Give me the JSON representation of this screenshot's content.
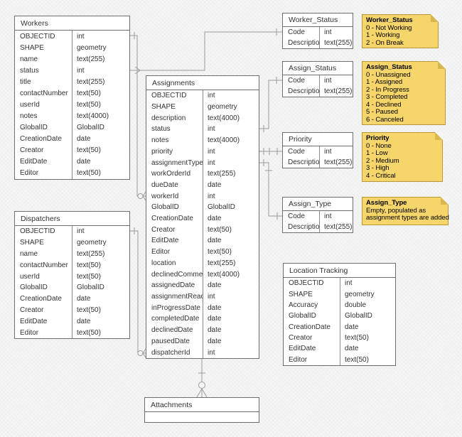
{
  "diagram": {
    "tables": {
      "workers": {
        "title": "Workers",
        "fields": [
          {
            "name": "OBJECTID",
            "type": "int"
          },
          {
            "name": "SHAPE",
            "type": "geometry"
          },
          {
            "name": "name",
            "type": "text(255)"
          },
          {
            "name": "status",
            "type": "int"
          },
          {
            "name": "title",
            "type": "text(255)"
          },
          {
            "name": "contactNumber",
            "type": "text(50)"
          },
          {
            "name": "userId",
            "type": "text(50)"
          },
          {
            "name": "notes",
            "type": "text(4000)"
          },
          {
            "name": "GlobalID",
            "type": "GlobalID"
          },
          {
            "name": "CreationDate",
            "type": "date"
          },
          {
            "name": "Creator",
            "type": "text(50)"
          },
          {
            "name": "EditDate",
            "type": "date"
          },
          {
            "name": "Editor",
            "type": "text(50)"
          }
        ]
      },
      "dispatchers": {
        "title": "Dispatchers",
        "fields": [
          {
            "name": "OBJECTID",
            "type": "int"
          },
          {
            "name": "SHAPE",
            "type": "geometry"
          },
          {
            "name": "name",
            "type": "text(255)"
          },
          {
            "name": "contactNumber",
            "type": "text(50)"
          },
          {
            "name": "userId",
            "type": "text(50)"
          },
          {
            "name": "GlobalID",
            "type": "GlobalID"
          },
          {
            "name": "CreationDate",
            "type": "date"
          },
          {
            "name": "Creator",
            "type": "text(50)"
          },
          {
            "name": "EditDate",
            "type": "date"
          },
          {
            "name": "Editor",
            "type": "text(50)"
          }
        ]
      },
      "assignments": {
        "title": "Assignments",
        "fields": [
          {
            "name": "OBJECTID",
            "type": "int"
          },
          {
            "name": "SHAPE",
            "type": "geometry"
          },
          {
            "name": "description",
            "type": "text(4000)"
          },
          {
            "name": "status",
            "type": "int"
          },
          {
            "name": "notes",
            "type": "text(4000)"
          },
          {
            "name": "priority",
            "type": "int"
          },
          {
            "name": "assignmentType",
            "type": "int"
          },
          {
            "name": "workOrderId",
            "type": "text(255)"
          },
          {
            "name": "dueDate",
            "type": "date"
          },
          {
            "name": "workerId",
            "type": "int"
          },
          {
            "name": "GlobalID",
            "type": "GlobalID"
          },
          {
            "name": "CreationDate",
            "type": "date"
          },
          {
            "name": "Creator",
            "type": "text(50)"
          },
          {
            "name": "EditDate",
            "type": "date"
          },
          {
            "name": "Editor",
            "type": "text(50)"
          },
          {
            "name": "location",
            "type": "text(255)"
          },
          {
            "name": "declinedComment",
            "type": "text(4000)"
          },
          {
            "name": "assignedDate",
            "type": "date"
          },
          {
            "name": "assignmentRead",
            "type": "int"
          },
          {
            "name": "inProgressDate",
            "type": "date"
          },
          {
            "name": "completedDate",
            "type": "date"
          },
          {
            "name": "declinedDate",
            "type": "date"
          },
          {
            "name": "pausedDate",
            "type": "date"
          },
          {
            "name": "dispatcherId",
            "type": "int"
          }
        ]
      },
      "attachments": {
        "title": "Attachments",
        "fields": []
      },
      "worker_status": {
        "title": "Worker_Status",
        "fields": [
          {
            "name": "Code",
            "type": "int"
          },
          {
            "name": "Description",
            "type": "text(255)"
          }
        ]
      },
      "assign_status": {
        "title": "Assign_Status",
        "fields": [
          {
            "name": "Code",
            "type": "int"
          },
          {
            "name": "Description",
            "type": "text(255)"
          }
        ]
      },
      "priority": {
        "title": "Priority",
        "fields": [
          {
            "name": "Code",
            "type": "int"
          },
          {
            "name": "Description",
            "type": "text(255)"
          }
        ]
      },
      "assign_type": {
        "title": "Assign_Type",
        "fields": [
          {
            "name": "Code",
            "type": "int"
          },
          {
            "name": "Description",
            "type": "text(255)"
          }
        ]
      },
      "location_tracking": {
        "title": "Location Tracking",
        "fields": [
          {
            "name": "OBJECTID",
            "type": "int"
          },
          {
            "name": "SHAPE",
            "type": "geometry"
          },
          {
            "name": "Accuracy",
            "type": "double"
          },
          {
            "name": "GlobalID",
            "type": "GlobalID"
          },
          {
            "name": "CreationDate",
            "type": "date"
          },
          {
            "name": "Creator",
            "type": "text(50)"
          },
          {
            "name": "EditDate",
            "type": "date"
          },
          {
            "name": "Editor",
            "type": "text(50)"
          }
        ]
      }
    },
    "notes": {
      "worker_status": {
        "title": "Worker_Status",
        "lines": [
          "0 - Not Working",
          "1 - Working",
          "2 - On Break"
        ]
      },
      "assign_status": {
        "title": "Assign_Status",
        "lines": [
          "0 - Unassigned",
          "1 - Assigned",
          "2 - In Progress",
          "3 - Completed",
          "4 - Declined",
          "5 - Paused",
          "6 - Canceled"
        ]
      },
      "priority": {
        "title": "Priority",
        "lines": [
          "0 - None",
          "1 - Low",
          "2 - Medium",
          "3 - High",
          "4 - Critical"
        ]
      },
      "assign_type": {
        "title": "Assign_Type",
        "lines": [
          "Empty, populated as",
          "assignment types are added"
        ]
      }
    },
    "relationships": [
      {
        "from": "Workers.OBJECTID",
        "to": "Assignments.workerId",
        "cardinality": "one-to-many"
      },
      {
        "from": "Dispatchers.OBJECTID",
        "to": "Assignments.dispatcherId",
        "cardinality": "one-to-many"
      },
      {
        "from": "Workers.status",
        "to": "Worker_Status.Code",
        "cardinality": "many-to-one"
      },
      {
        "from": "Assignments.status",
        "to": "Assign_Status.Code",
        "cardinality": "many-to-one"
      },
      {
        "from": "Assignments.priority",
        "to": "Priority.Code",
        "cardinality": "many-to-one"
      },
      {
        "from": "Assignments.assignmentType",
        "to": "Assign_Type.Code",
        "cardinality": "many-to-one"
      },
      {
        "from": "Assignments",
        "to": "Attachments",
        "cardinality": "one-to-many"
      }
    ],
    "colors": {
      "background": "#f5f5f5",
      "table_fill": "#ffffff",
      "table_border": "#6e6e6e",
      "text": "#333333",
      "edge": "#9c9c9c",
      "note_fill": "#f6d66b",
      "note_border": "#b9983a",
      "note_fold": "#d9b94f"
    }
  }
}
